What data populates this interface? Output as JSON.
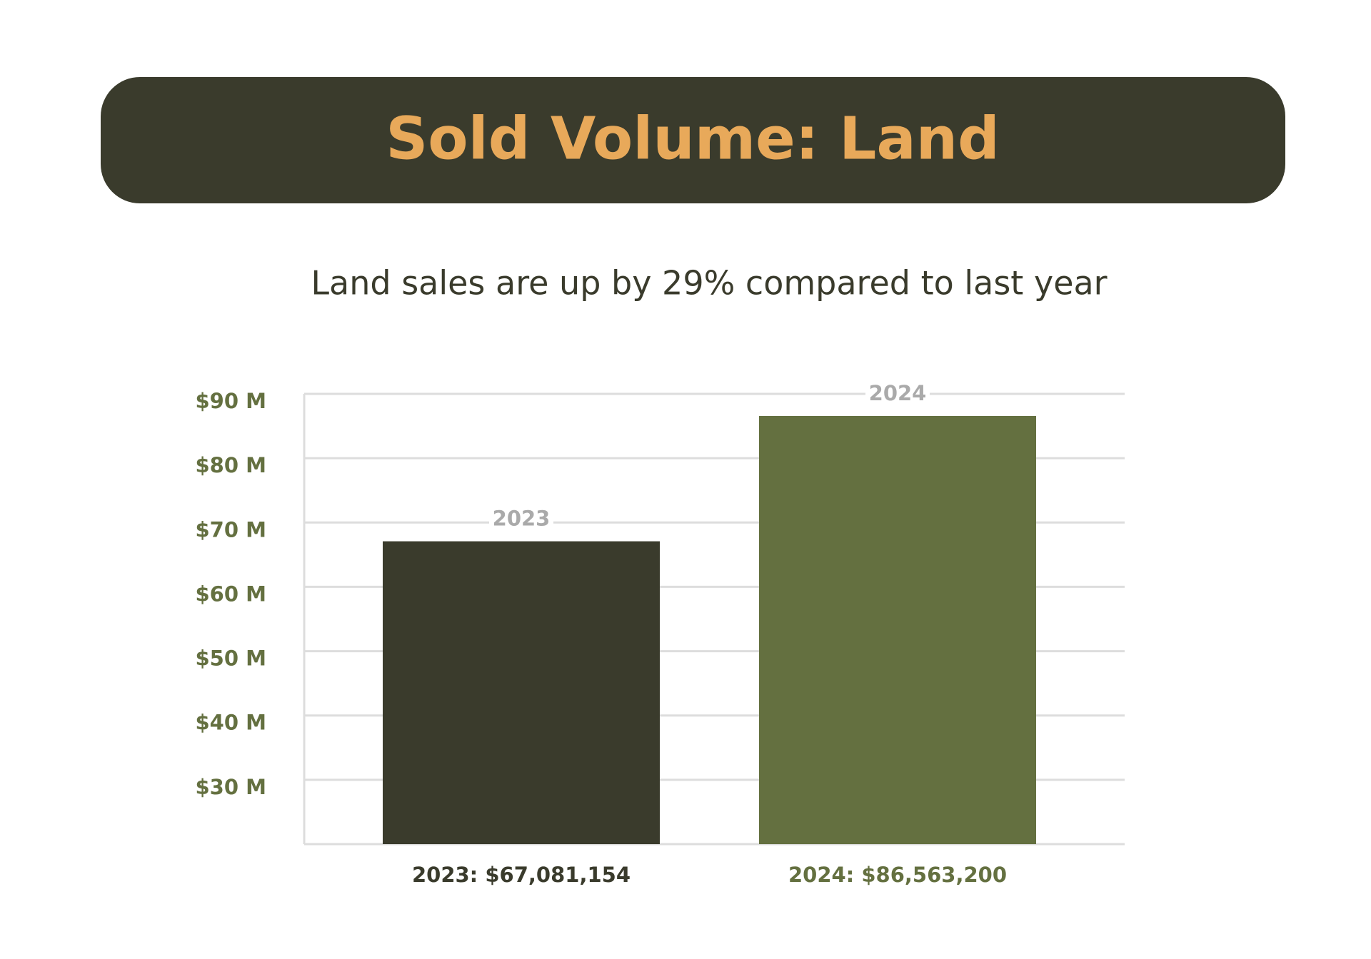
{
  "chart_data": {
    "type": "bar",
    "title": "Sold Volume: Land",
    "subtitle": "Land sales are up by 29% compared to last year",
    "categories": [
      "2023",
      "2024"
    ],
    "values": [
      67081154,
      86563200
    ],
    "value_labels": [
      "2023: $67,081,154",
      "2024: $86,563,200"
    ],
    "colors": [
      "#3a3b2c",
      "#647040"
    ],
    "ylim": [
      20000000,
      90000000
    ],
    "yticks": [
      {
        "value": 30000000,
        "label": "$30 M"
      },
      {
        "value": 40000000,
        "label": "$40 M"
      },
      {
        "value": 50000000,
        "label": "$50 M"
      },
      {
        "value": 60000000,
        "label": "$60 M"
      },
      {
        "value": 70000000,
        "label": "$70 M"
      },
      {
        "value": 80000000,
        "label": "$80 M"
      },
      {
        "value": 90000000,
        "label": "$90 M"
      }
    ],
    "grid": true
  }
}
